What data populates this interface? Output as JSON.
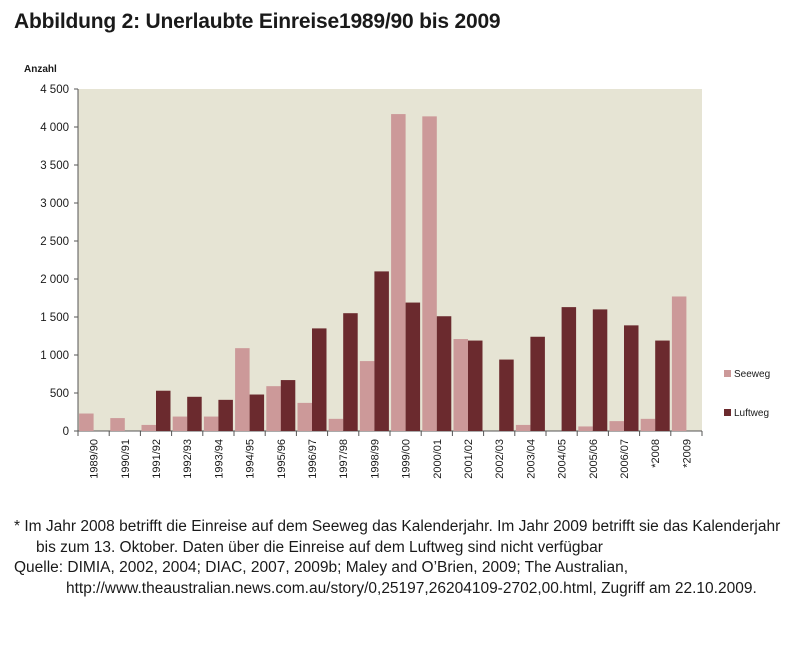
{
  "title": "Abbildung 2: Unerlaubte Einreise1989/90 bis 2009",
  "chart_data": {
    "type": "bar",
    "ylabel": "Anzahl",
    "ylim": [
      0,
      4500
    ],
    "yticks": [
      0,
      500,
      1000,
      1500,
      2000,
      2500,
      3000,
      3500,
      4000,
      4500
    ],
    "ytick_labels": [
      "0",
      "500",
      "1 000",
      "1 500",
      "2 000",
      "2 500",
      "3 000",
      "3 500",
      "4 000",
      "4 500"
    ],
    "categories": [
      "1989/90",
      "1990/91",
      "1991/92",
      "1992/93",
      "1993/94",
      "1994/95",
      "1995/96",
      "1996/97",
      "1997/98",
      "1998/99",
      "1999/00",
      "2000/01",
      "2001/02",
      "2002/03",
      "2003/04",
      "2004/05",
      "2005/06",
      "2006/07",
      "*2008",
      "*2009"
    ],
    "series": [
      {
        "name": "Seeweg",
        "color": "#cc9999",
        "values": [
          230,
          170,
          80,
          190,
          190,
          1090,
          590,
          370,
          160,
          920,
          4170,
          4140,
          1210,
          0,
          80,
          0,
          60,
          130,
          160,
          1770
        ]
      },
      {
        "name": "Luftweg",
        "color": "#6b2a2e",
        "values": [
          0,
          0,
          530,
          450,
          410,
          480,
          670,
          1350,
          1550,
          2100,
          1690,
          1510,
          1190,
          940,
          1240,
          1630,
          1600,
          1390,
          1190,
          0
        ]
      }
    ],
    "legend_position": "right",
    "plot_background": "#e6e4d4"
  },
  "footnotes": {
    "note": "* Im Jahr 2008 betrifft die Einreise auf dem Seeweg das Kalenderjahr. Im Jahr 2009 betrifft sie das Kalenderjahr bis zum 13. Oktober. Daten über die Einreise auf dem Luftweg sind nicht verfügbar",
    "source": "Quelle: DIMIA, 2002, 2004; DIAC, 2007, 2009b; Maley and O’Brien, 2009; The Australian, http://www.theaustralian.news.com.au/story/0,25197,26204109-2702,00.html, Zugriff am 22.10.2009."
  }
}
